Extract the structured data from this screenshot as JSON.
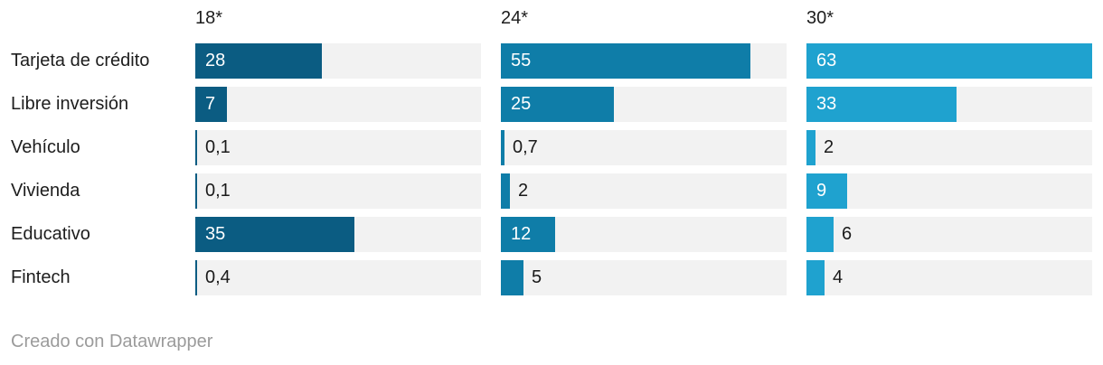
{
  "chart_data": {
    "type": "bar",
    "layout": "small-multiples-horizontal-bars",
    "title": "",
    "xlabel": "",
    "ylabel": "",
    "xlim": [
      0,
      63
    ],
    "grid": false,
    "legend_position": "column-headers",
    "track_color": "#f2f2f2",
    "categories": [
      "Tarjeta de crédito",
      "Libre inversión",
      "Vehículo",
      "Vivienda",
      "Educativo",
      "Fintech"
    ],
    "series": [
      {
        "name": "18*",
        "color": "#0b5c82",
        "values": [
          28,
          7,
          0.1,
          0.1,
          35,
          0.4
        ],
        "value_labels": [
          "28",
          "7",
          "0,1",
          "0,1",
          "35",
          "0,4"
        ]
      },
      {
        "name": "24*",
        "color": "#0f7da8",
        "values": [
          55,
          25,
          0.7,
          2,
          12,
          5
        ],
        "value_labels": [
          "55",
          "25",
          "0,7",
          "2",
          "12",
          "5"
        ]
      },
      {
        "name": "30*",
        "color": "#1fa2cf",
        "values": [
          63,
          33,
          2,
          9,
          6,
          4
        ],
        "value_labels": [
          "63",
          "33",
          "2",
          "9",
          "6",
          "4"
        ]
      }
    ]
  },
  "footer": {
    "text": "Creado con Datawrapper"
  }
}
